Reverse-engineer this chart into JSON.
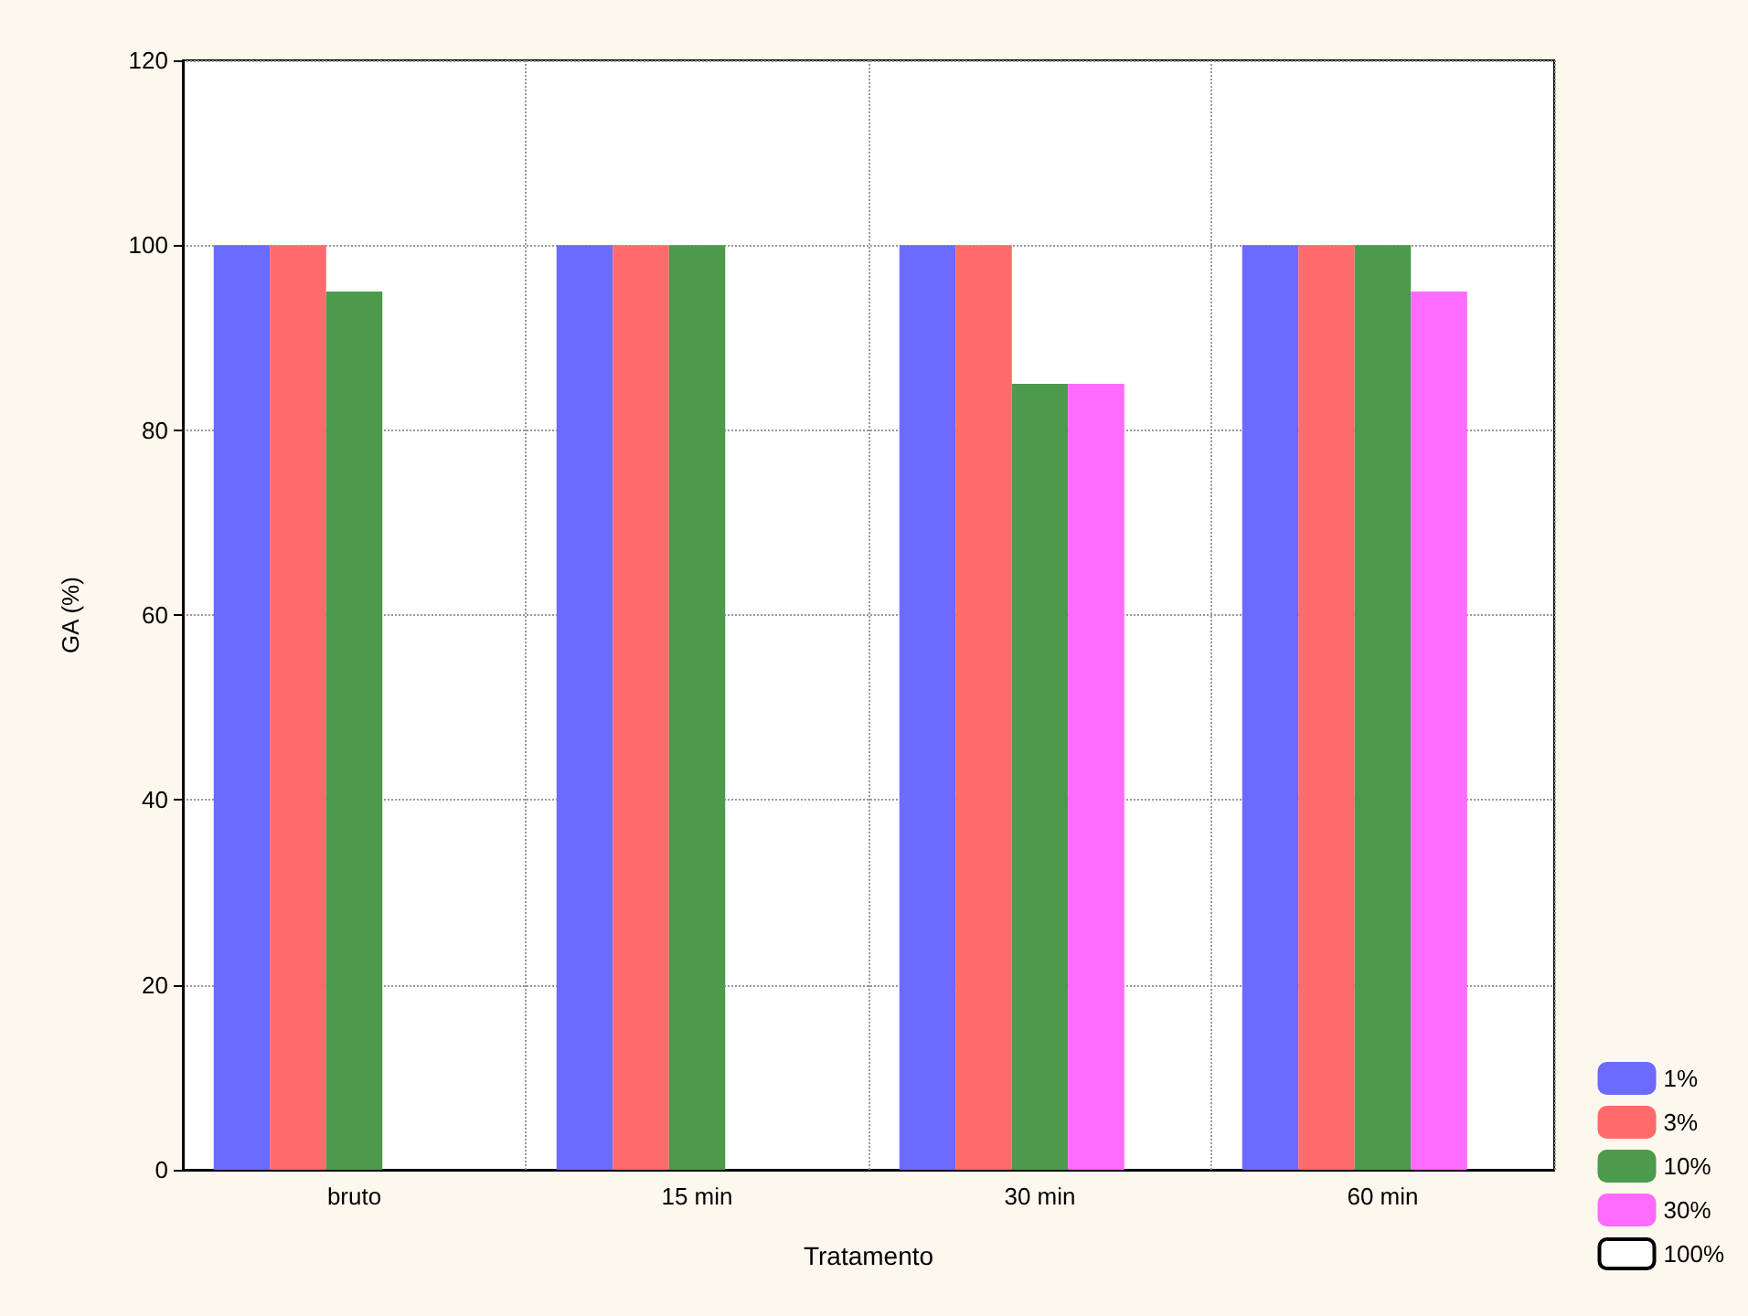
{
  "chart_data": {
    "type": "bar",
    "xlabel": "Tratamento",
    "ylabel": "GA (%)",
    "categories": [
      "bruto",
      "15 min",
      "30 min",
      "60 min"
    ],
    "series": [
      {
        "name": "1%",
        "color": "#6b6bff",
        "values": [
          100,
          100,
          100,
          100
        ]
      },
      {
        "name": "3%",
        "color": "#ff6b6b",
        "values": [
          100,
          100,
          100,
          100
        ]
      },
      {
        "name": "10%",
        "color": "#4c9a4c",
        "values": [
          95,
          100,
          85,
          100
        ]
      },
      {
        "name": "30%",
        "color": "#ff6bff",
        "values": [
          null,
          null,
          85,
          95
        ]
      },
      {
        "name": "100%",
        "color": "#ffffff",
        "values": [
          null,
          null,
          null,
          null
        ]
      }
    ],
    "ylim": [
      0,
      120
    ],
    "yticks": [
      0,
      20,
      40,
      60,
      80,
      100,
      120
    ],
    "grid": true,
    "legend": "bottom right"
  }
}
